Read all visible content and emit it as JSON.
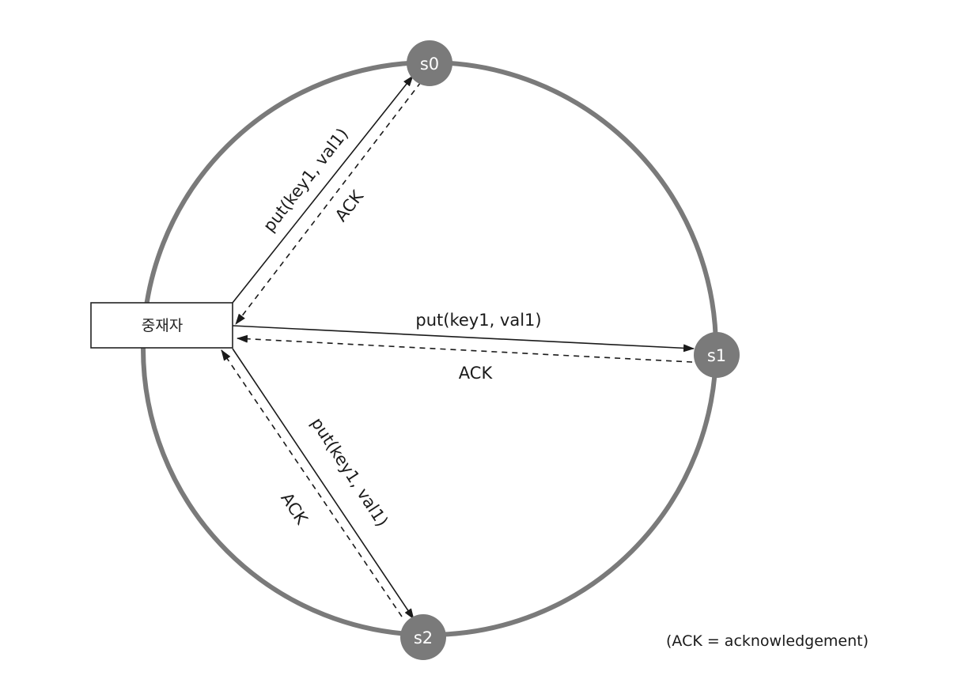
{
  "coordinator": {
    "label": "중재자"
  },
  "nodes": [
    {
      "id": "s0",
      "label": "s0"
    },
    {
      "id": "s1",
      "label": "s1"
    },
    {
      "id": "s2",
      "label": "s2"
    }
  ],
  "messages": {
    "s0": {
      "request": "put(key1, val1)",
      "response": "ACK"
    },
    "s1": {
      "request": "put(key1, val1)",
      "response": "ACK"
    },
    "s2": {
      "request": "put(key1, val1)",
      "response": "ACK"
    }
  },
  "note": "(ACK = acknowledgement)",
  "colors": {
    "ring": "#7a7a7a",
    "node": "#7a7a7a",
    "line": "#1a1a1a"
  }
}
